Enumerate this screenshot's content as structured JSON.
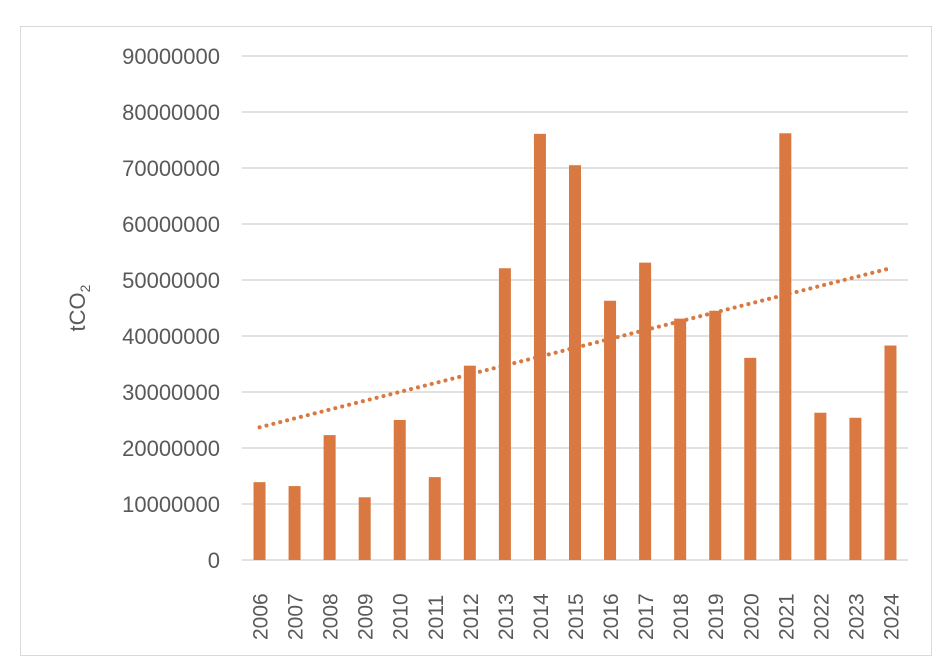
{
  "chart_data": {
    "type": "bar",
    "title": "",
    "xlabel": "",
    "ylabel": "tCO",
    "ylabel_subscript": "2",
    "ylim": [
      0,
      90000000
    ],
    "yticks": [
      0,
      10000000,
      20000000,
      30000000,
      40000000,
      50000000,
      60000000,
      70000000,
      80000000,
      90000000
    ],
    "grid": true,
    "legend": "none",
    "bar_color": "#D97941",
    "categories": [
      "2006",
      "2007",
      "2008",
      "2009",
      "2010",
      "2011",
      "2012",
      "2013",
      "2014",
      "2015",
      "2016",
      "2017",
      "2018",
      "2019",
      "2020",
      "2021",
      "2022",
      "2023",
      "2024"
    ],
    "values": [
      13900000,
      13200000,
      22300000,
      11200000,
      25000000,
      14800000,
      34700000,
      52100000,
      76100000,
      70500000,
      46300000,
      53100000,
      43100000,
      44500000,
      36100000,
      76200000,
      26300000,
      25400000,
      38300000
    ],
    "trendline": {
      "type": "linear",
      "style": "dotted",
      "start": 23700000,
      "end": 52100000
    }
  }
}
